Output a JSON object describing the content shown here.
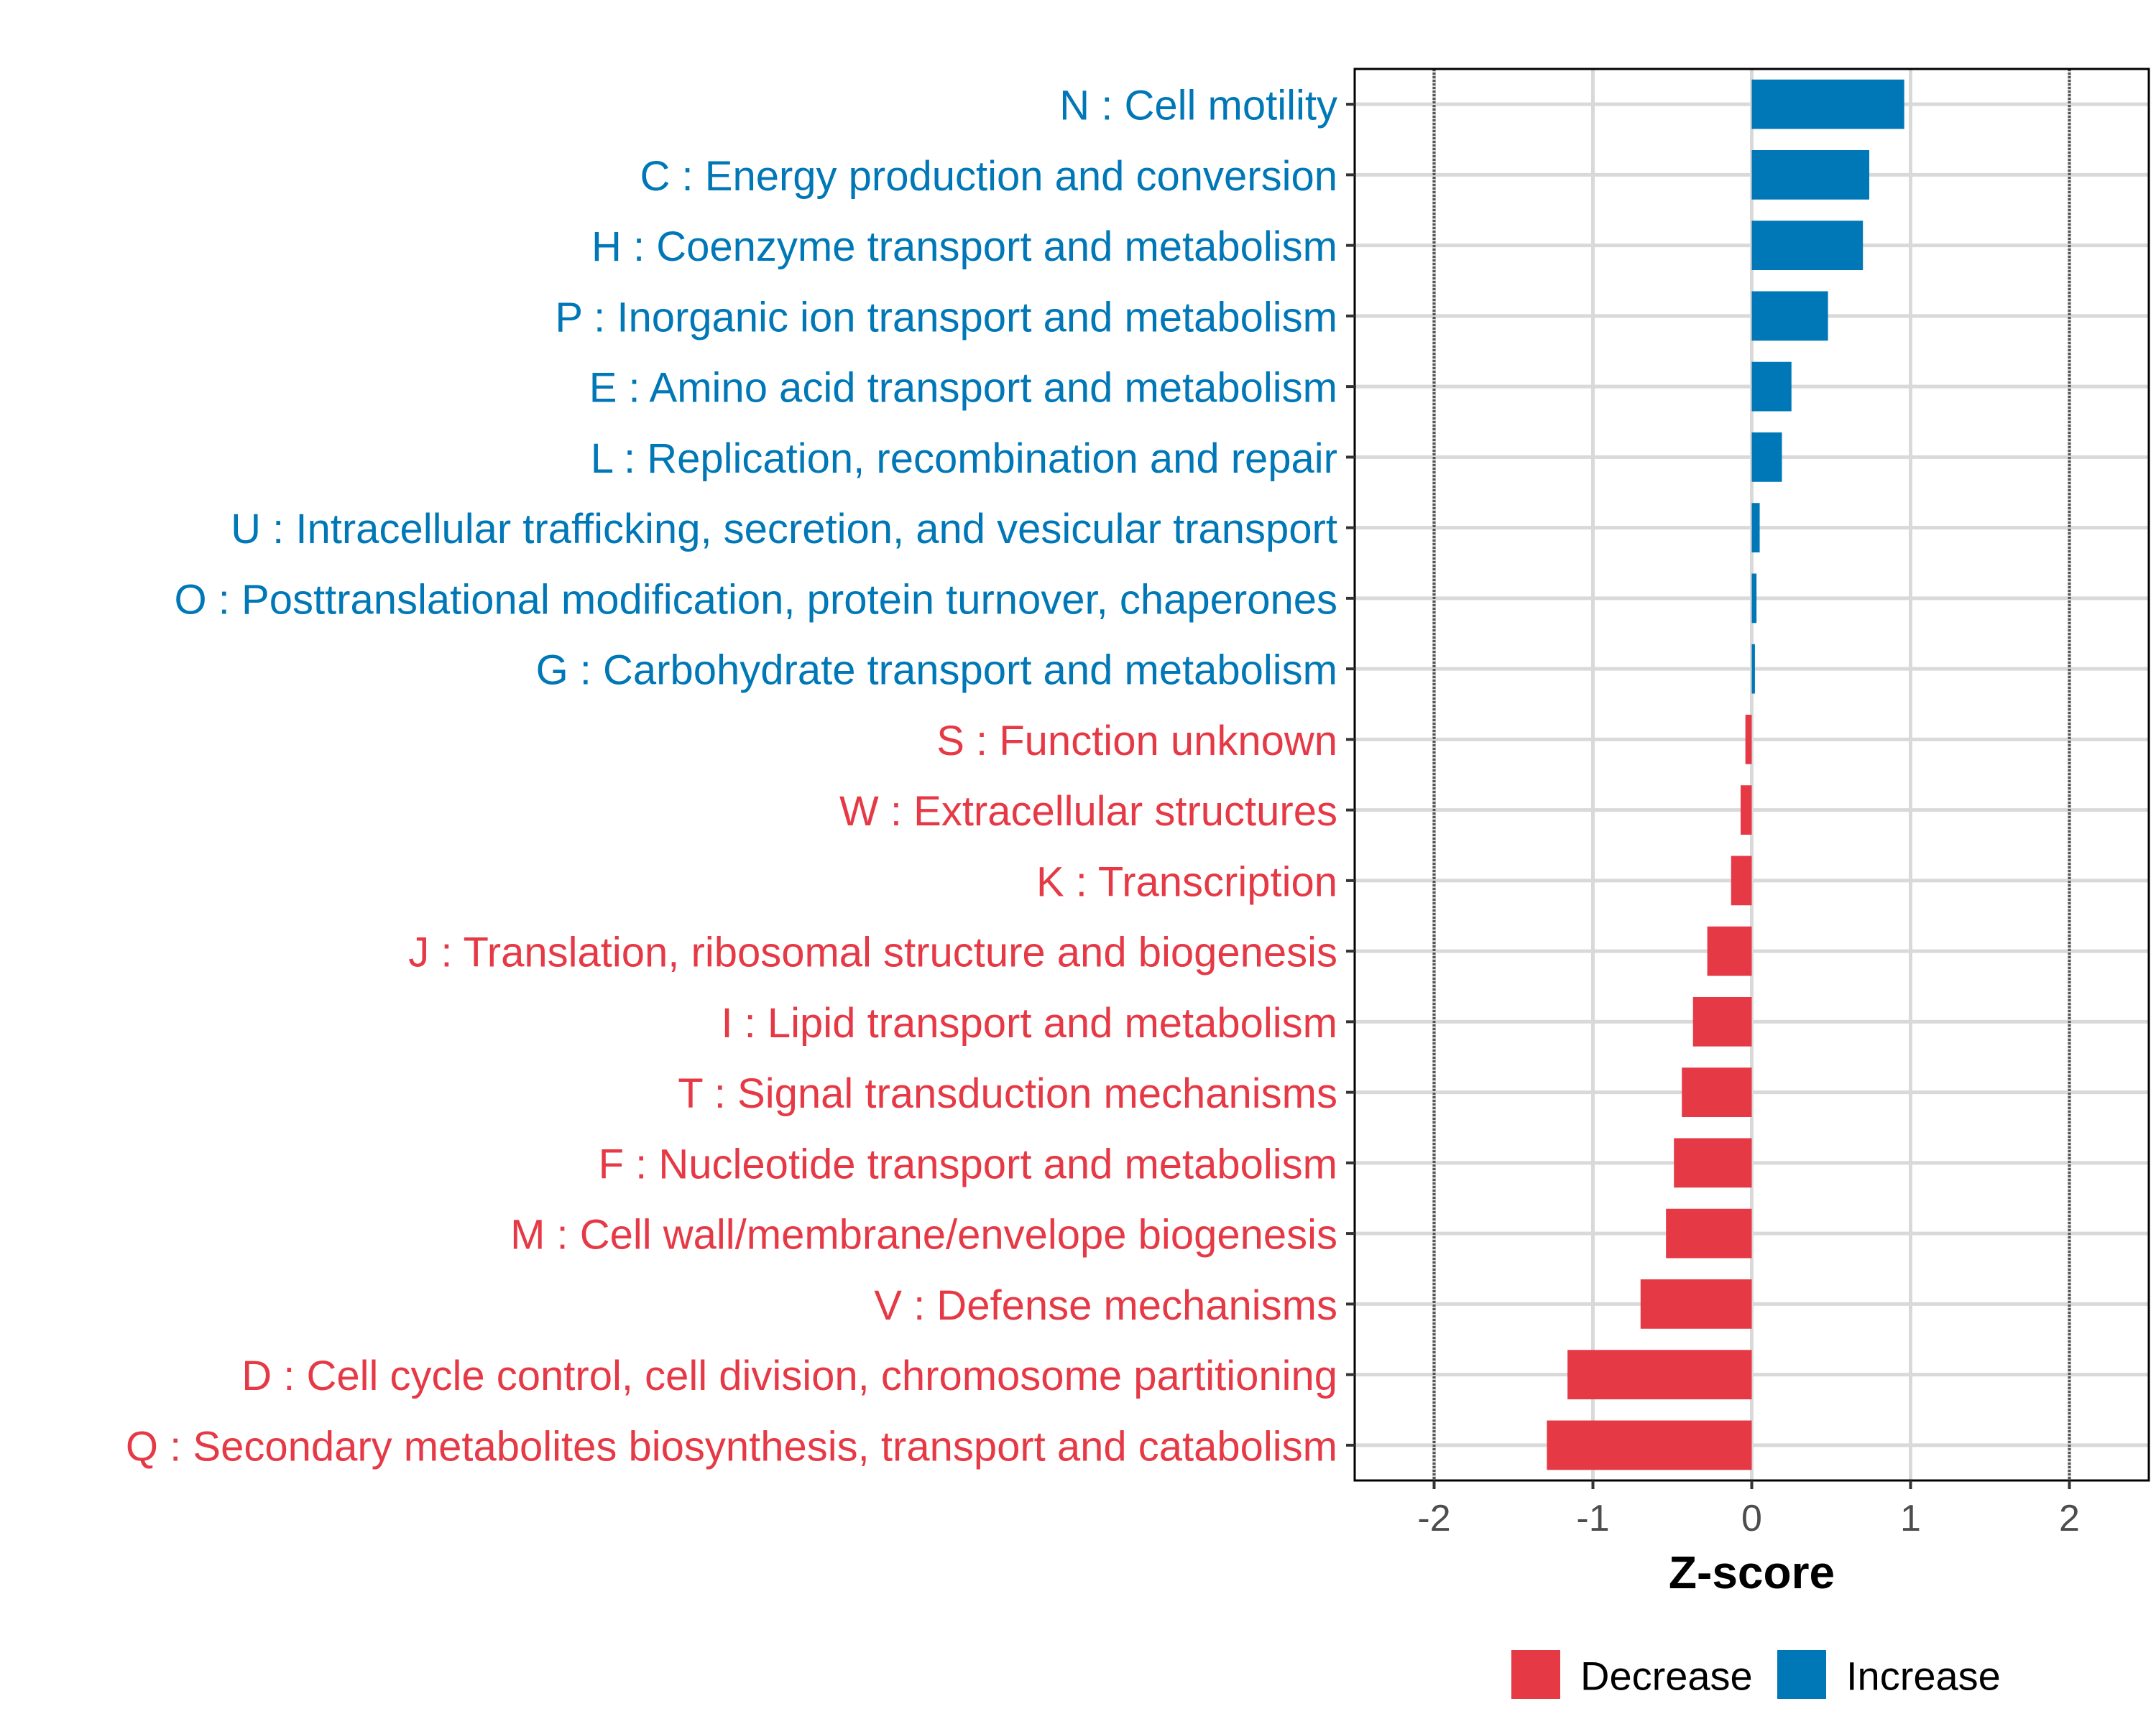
{
  "chart_data": {
    "type": "bar",
    "orientation": "horizontal",
    "title": "",
    "xlabel": "Z-score",
    "ylabel": "",
    "xlim": [
      -2.5,
      2.5
    ],
    "xticks": [
      -2,
      -1,
      0,
      1,
      2
    ],
    "xtick_labels": [
      "-2",
      "-1",
      "0",
      "1",
      "2"
    ],
    "reference_lines": [
      -2,
      2
    ],
    "grid": true,
    "legend_position": "bottom",
    "colors": {
      "Decrease": "#E63946",
      "Increase": "#0077B6"
    },
    "legend": [
      {
        "label": "Decrease",
        "color": "#E63946"
      },
      {
        "label": "Increase",
        "color": "#0077B6"
      }
    ],
    "categories": [
      "N : Cell motility",
      "C : Energy production and conversion",
      "H : Coenzyme transport and metabolism",
      "P : Inorganic ion transport and metabolism",
      "E : Amino acid transport and metabolism",
      "L : Replication, recombination and repair",
      "U : Intracellular trafficking, secretion, and vesicular transport",
      "O : Posttranslational modification, protein turnover, chaperones",
      "G : Carbohydrate transport and metabolism",
      "S : Function unknown",
      "W : Extracellular structures",
      "K : Transcription",
      "J : Translation, ribosomal structure and biogenesis",
      "I : Lipid transport and metabolism",
      "T : Signal transduction mechanisms",
      "F : Nucleotide transport and metabolism",
      "M : Cell wall/membrane/envelope biogenesis",
      "V : Defense mechanisms",
      "D : Cell cycle control, cell division, chromosome partitioning",
      "Q : Secondary metabolites biosynthesis, transport and catabolism"
    ],
    "values": [
      0.96,
      0.74,
      0.7,
      0.48,
      0.25,
      0.19,
      0.05,
      0.03,
      0.02,
      -0.04,
      -0.07,
      -0.13,
      -0.28,
      -0.37,
      -0.44,
      -0.49,
      -0.54,
      -0.7,
      -1.16,
      -1.29
    ],
    "groups": [
      "Increase",
      "Increase",
      "Increase",
      "Increase",
      "Increase",
      "Increase",
      "Increase",
      "Increase",
      "Increase",
      "Decrease",
      "Decrease",
      "Decrease",
      "Decrease",
      "Decrease",
      "Decrease",
      "Decrease",
      "Decrease",
      "Decrease",
      "Decrease",
      "Decrease"
    ]
  }
}
